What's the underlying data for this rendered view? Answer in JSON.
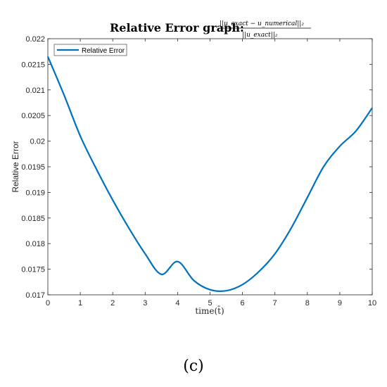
{
  "chart_data": {
    "type": "line",
    "title": "Relative Error graph:",
    "title_formula_numerator": "||u_exact − u_numerical||₂",
    "title_formula_denominator": "||u_exact||₂",
    "xlabel": "time(t̄)",
    "ylabel": "Relative Error",
    "xlim": [
      0,
      10
    ],
    "ylim": [
      0.017,
      0.022
    ],
    "x_ticks": [
      "0",
      "1",
      "2",
      "3",
      "4",
      "5",
      "6",
      "7",
      "8",
      "9",
      "10"
    ],
    "y_ticks": [
      "0.017",
      "0.0175",
      "0.018",
      "0.0185",
      "0.019",
      "0.0195",
      "0.02",
      "0.0205",
      "0.021",
      "0.0215",
      "0.022"
    ],
    "grid": false,
    "legend_position": "top-left",
    "colors": {
      "series": "#0072BD"
    },
    "series": [
      {
        "name": "Relative Error",
        "x": [
          0,
          0.5,
          1,
          1.5,
          2,
          2.5,
          3,
          3.5,
          4,
          4.5,
          5,
          5.5,
          6,
          6.5,
          7,
          7.5,
          8,
          8.5,
          9,
          9.5,
          10
        ],
        "values": [
          0.02165,
          0.0209,
          0.0201,
          0.01945,
          0.01885,
          0.0183,
          0.0178,
          0.0174,
          0.01765,
          0.01728,
          0.0171,
          0.01708,
          0.0172,
          0.01745,
          0.0178,
          0.0183,
          0.0189,
          0.0195,
          0.0199,
          0.0202,
          0.02065
        ]
      }
    ]
  },
  "caption": "(c)"
}
